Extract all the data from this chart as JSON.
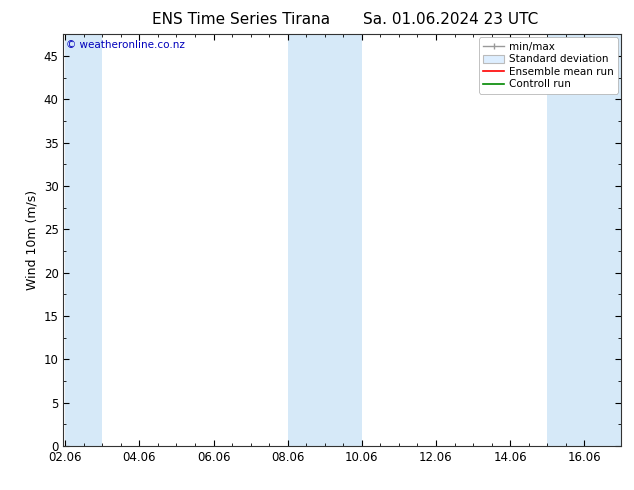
{
  "title_left": "ENS Time Series Tirana",
  "title_right": "Sa. 01.06.2024 23 UTC",
  "ylabel": "Wind 10m (m/s)",
  "ylim": [
    0,
    47.5
  ],
  "yticks": [
    0,
    5,
    10,
    15,
    20,
    25,
    30,
    35,
    40,
    45
  ],
  "xtick_labels": [
    "02.06",
    "04.06",
    "06.06",
    "08.06",
    "10.06",
    "12.06",
    "14.06",
    "16.06"
  ],
  "xtick_positions": [
    0,
    2,
    4,
    6,
    8,
    10,
    12,
    14
  ],
  "xlim": [
    -0.05,
    15.0
  ],
  "shaded_bands": [
    {
      "x_start": 0.0,
      "x_end": 1.0
    },
    {
      "x_start": 6.0,
      "x_end": 8.0
    },
    {
      "x_start": 13.0,
      "x_end": 15.0
    }
  ],
  "shade_color": "#d6e9f8",
  "bg_color": "#ffffff",
  "plot_bg_color": "#ffffff",
  "watermark": "© weatheronline.co.nz",
  "watermark_color": "#0000bb",
  "legend_items": [
    {
      "label": "min/max",
      "color": "#999999",
      "style": "errorbar"
    },
    {
      "label": "Standard deviation",
      "color": "#bbbbbb",
      "style": "box"
    },
    {
      "label": "Ensemble mean run",
      "color": "#ff0000",
      "style": "line"
    },
    {
      "label": "Controll run",
      "color": "#008800",
      "style": "line"
    }
  ],
  "axis_linewidth": 0.8,
  "tick_direction": "in",
  "title_fontsize": 11,
  "label_fontsize": 9,
  "tick_fontsize": 8.5,
  "legend_fontsize": 7.5
}
